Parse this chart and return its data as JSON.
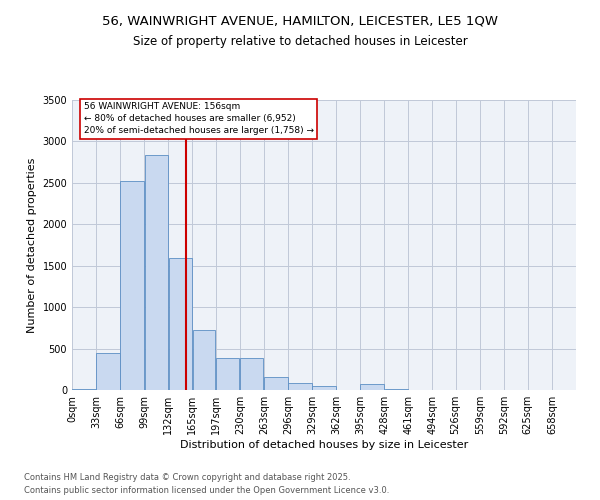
{
  "title1": "56, WAINWRIGHT AVENUE, HAMILTON, LEICESTER, LE5 1QW",
  "title2": "Size of property relative to detached houses in Leicester",
  "xlabel": "Distribution of detached houses by size in Leicester",
  "ylabel": "Number of detached properties",
  "bar_color": "#c9d9f0",
  "bar_edge_color": "#5b8ec4",
  "grid_color": "#c0c8d8",
  "bg_color": "#eef2f8",
  "annotation_line_color": "#cc0000",
  "annotation_text": "56 WAINWRIGHT AVENUE: 156sqm\n← 80% of detached houses are smaller (6,952)\n20% of semi-detached houses are larger (1,758) →",
  "subject_value": 156,
  "categories": [
    "0sqm",
    "33sqm",
    "66sqm",
    "99sqm",
    "132sqm",
    "165sqm",
    "197sqm",
    "230sqm",
    "263sqm",
    "296sqm",
    "329sqm",
    "362sqm",
    "395sqm",
    "428sqm",
    "461sqm",
    "494sqm",
    "526sqm",
    "559sqm",
    "592sqm",
    "625sqm",
    "658sqm"
  ],
  "bin_edges": [
    0,
    33,
    66,
    99,
    132,
    165,
    197,
    230,
    263,
    296,
    329,
    362,
    395,
    428,
    461,
    494,
    526,
    559,
    592,
    625,
    658
  ],
  "values": [
    10,
    450,
    2520,
    2840,
    1590,
    730,
    390,
    390,
    155,
    80,
    50,
    0,
    75,
    10,
    5,
    5,
    5,
    5,
    0,
    0,
    0
  ],
  "ylim": [
    0,
    3500
  ],
  "yticks": [
    0,
    500,
    1000,
    1500,
    2000,
    2500,
    3000,
    3500
  ],
  "footer": "Contains HM Land Registry data © Crown copyright and database right 2025.\nContains public sector information licensed under the Open Government Licence v3.0.",
  "title_fontsize": 9.5,
  "subtitle_fontsize": 8.5,
  "axis_label_fontsize": 8,
  "tick_fontsize": 7,
  "footer_fontsize": 6
}
